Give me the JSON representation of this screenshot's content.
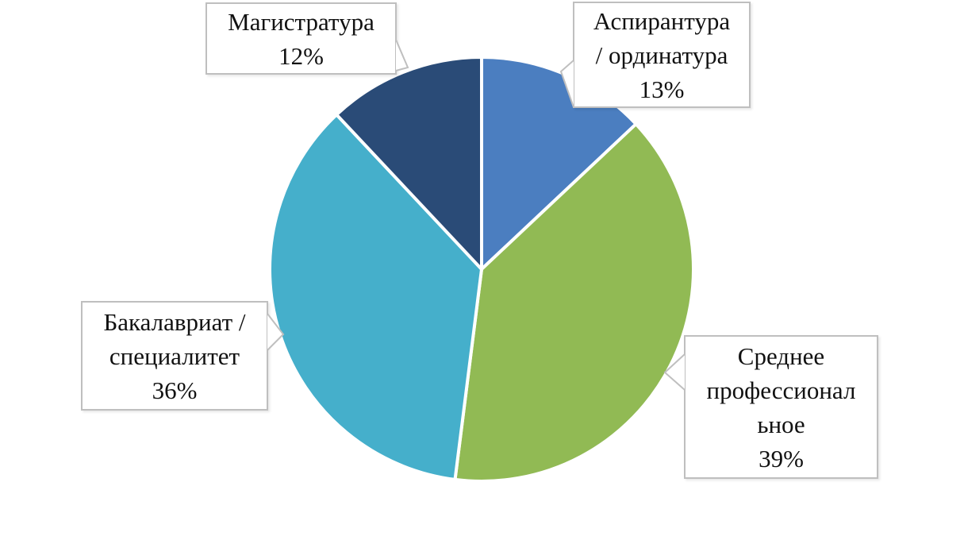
{
  "chart_data": {
    "type": "pie",
    "title": "",
    "categories": [
      "Аспирантура / ординатура",
      "Среднее профессиональное",
      "Бакалавриат / специалитет",
      "Магистратура"
    ],
    "values": [
      13,
      39,
      36,
      12
    ],
    "unit": "%",
    "keys": [
      "aspirantura-ordinatura",
      "srednee-professionalnoe",
      "bakalavriat-specialitet",
      "magistratura"
    ],
    "slice_colors": [
      "#4b7ec0",
      "#91ba54",
      "#45afcb",
      "#2a4b77"
    ],
    "slice_gap_color": "#ffffff",
    "start_angle_deg": 0,
    "direction": "clockwise",
    "legend": "none",
    "data_labels": "callout-boxes",
    "callout_border_color": "#bfbfbf",
    "callout_fill_color": "#ffffff",
    "callout_text_color": "#111111"
  },
  "callouts": [
    {
      "key": "magistratura",
      "text": "Магистратура\n12%"
    },
    {
      "key": "aspirantura-ordinatura",
      "text": "Аспирантура\n/ ординатура\n13%"
    },
    {
      "key": "srednee-professionalnoe",
      "text": "Среднее\nпрофессионал\nьное\n39%"
    },
    {
      "key": "bakalavriat-specialitet",
      "text": "Бакалавриат /\nспециалитет\n36%"
    }
  ]
}
